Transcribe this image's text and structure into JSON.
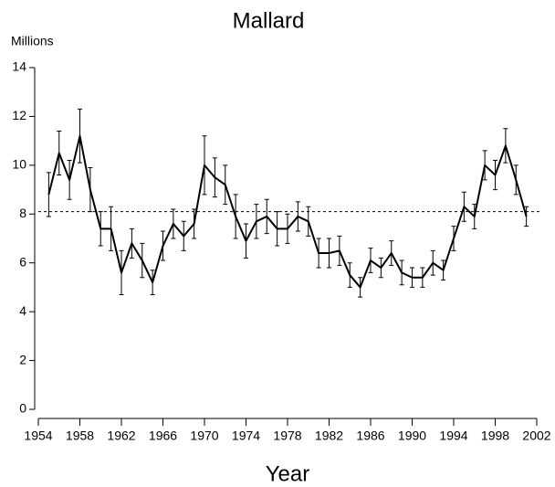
{
  "chart_data": {
    "type": "line",
    "title": "Mallard",
    "y_label": "Millions",
    "x_label": "Year",
    "x": [
      1955,
      1956,
      1957,
      1958,
      1959,
      1960,
      1961,
      1962,
      1963,
      1964,
      1965,
      1966,
      1967,
      1968,
      1969,
      1970,
      1971,
      1972,
      1973,
      1974,
      1975,
      1976,
      1977,
      1978,
      1979,
      1980,
      1981,
      1982,
      1983,
      1984,
      1985,
      1986,
      1987,
      1988,
      1989,
      1990,
      1991,
      1992,
      1993,
      1994,
      1995,
      1996,
      1997,
      1998,
      1999,
      2000,
      2001
    ],
    "series": [
      {
        "name": "Mallard",
        "color": "#000000",
        "values": [
          8.8,
          10.5,
          9.4,
          11.2,
          9.0,
          7.4,
          7.4,
          5.6,
          6.8,
          6.1,
          5.2,
          6.7,
          7.6,
          7.1,
          7.6,
          10.0,
          9.5,
          9.2,
          7.9,
          6.9,
          7.7,
          7.9,
          7.4,
          7.4,
          7.9,
          7.7,
          6.4,
          6.4,
          6.5,
          5.5,
          5.0,
          6.1,
          5.8,
          6.4,
          5.6,
          5.4,
          5.4,
          6.0,
          5.7,
          7.0,
          8.3,
          7.9,
          10.0,
          9.6,
          10.8,
          9.4,
          7.9
        ],
        "errors": [
          0.9,
          0.9,
          0.8,
          1.1,
          0.9,
          0.7,
          0.9,
          0.9,
          0.6,
          0.7,
          0.5,
          0.6,
          0.6,
          0.6,
          0.6,
          1.2,
          0.8,
          0.8,
          0.9,
          0.7,
          0.7,
          0.7,
          0.7,
          0.6,
          0.6,
          0.6,
          0.6,
          0.6,
          0.6,
          0.5,
          0.4,
          0.5,
          0.4,
          0.5,
          0.5,
          0.4,
          0.4,
          0.5,
          0.4,
          0.5,
          0.6,
          0.5,
          0.6,
          0.6,
          0.7,
          0.6,
          0.4
        ]
      }
    ],
    "reference_line": {
      "value": 8.1,
      "style": "dashed",
      "color": "#000000"
    },
    "xlim": [
      1954,
      2002
    ],
    "xticks": [
      1954,
      1958,
      1962,
      1966,
      1970,
      1974,
      1978,
      1982,
      1986,
      1990,
      1994,
      1998,
      2002
    ],
    "ylim": [
      0,
      14
    ],
    "yticks": [
      0,
      2,
      4,
      6,
      8,
      10,
      12,
      14
    ],
    "grid": false
  }
}
